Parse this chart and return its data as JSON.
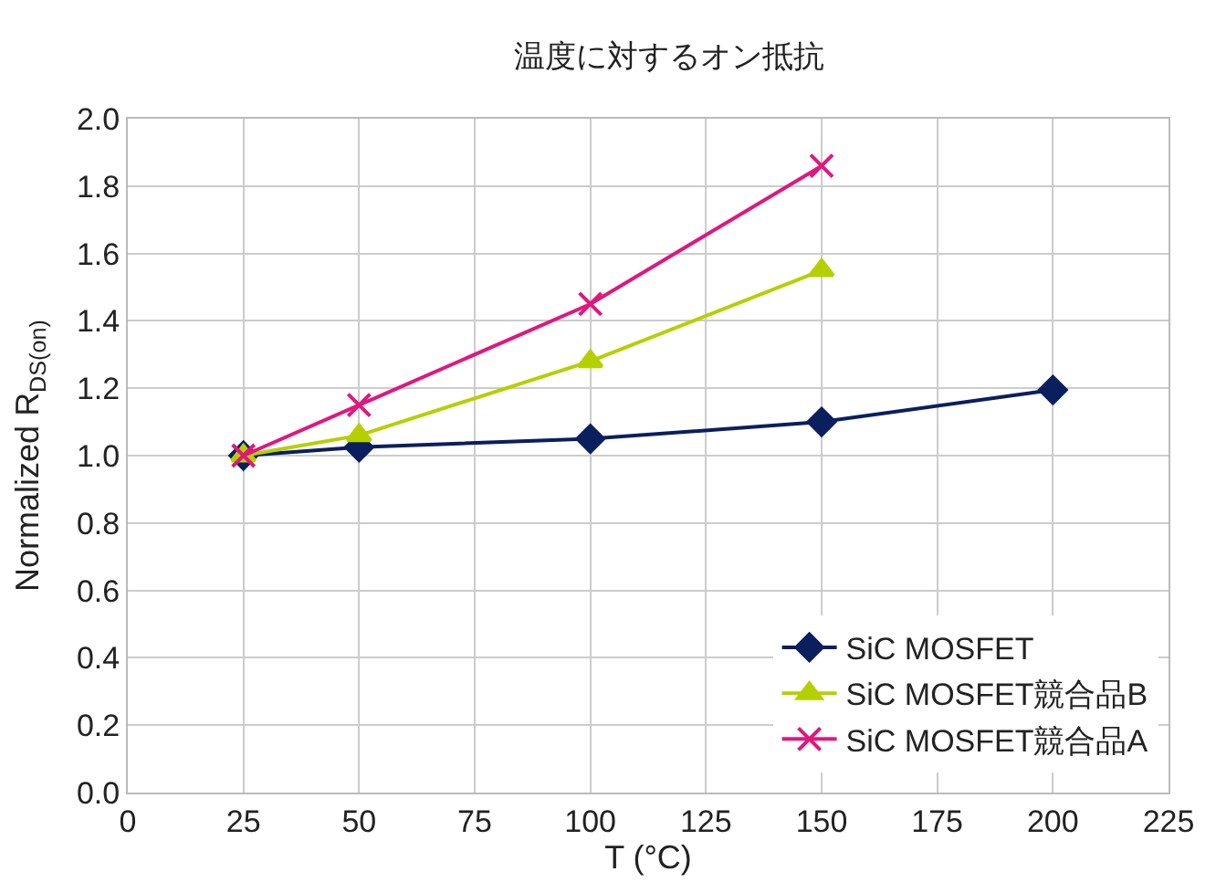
{
  "chart_data": {
    "type": "line",
    "title": "温度に対するオン抵抗",
    "xlabel": "T (°C)",
    "ylabel": "Normalized R$_{DS(on)}$",
    "x": [
      25,
      50,
      100,
      150,
      200
    ],
    "series": [
      {
        "name": "SiC MOSFET",
        "color": "#0b1f5e",
        "marker": "diamond",
        "values": [
          1.0,
          1.025,
          1.05,
          1.1,
          1.195
        ]
      },
      {
        "name": "SiC MOSFET競合品B",
        "color": "#b5d000",
        "marker": "triangle",
        "values": [
          1.0,
          1.06,
          1.28,
          1.55,
          null
        ]
      },
      {
        "name": "SiC MOSFET競合品A",
        "color": "#e0177f",
        "marker": "cross",
        "values": [
          1.0,
          1.15,
          1.45,
          1.86,
          null
        ]
      }
    ],
    "xlim": [
      0,
      225
    ],
    "xticks": [
      0,
      25,
      50,
      75,
      100,
      125,
      150,
      175,
      200,
      225
    ],
    "ylim": [
      0,
      2.0
    ],
    "yticks": [
      {
        "value": 0,
        "label": "0.0"
      },
      {
        "value": 0.2,
        "label": "0.2"
      },
      {
        "value": 0.4,
        "label": "0.4"
      },
      {
        "value": 0.6,
        "label": "0.6"
      },
      {
        "value": 0.8,
        "label": "0.8"
      },
      {
        "value": 1.0,
        "label": "1.0"
      },
      {
        "value": 1.2,
        "label": "1.2"
      },
      {
        "value": 1.4,
        "label": "1.4"
      },
      {
        "value": 1.6,
        "label": "1.6"
      },
      {
        "value": 1.8,
        "label": "1.8"
      },
      {
        "value": 2.0,
        "label": "2.0"
      }
    ],
    "grid": true,
    "legend": "bottom right",
    "line_style": "solid"
  }
}
